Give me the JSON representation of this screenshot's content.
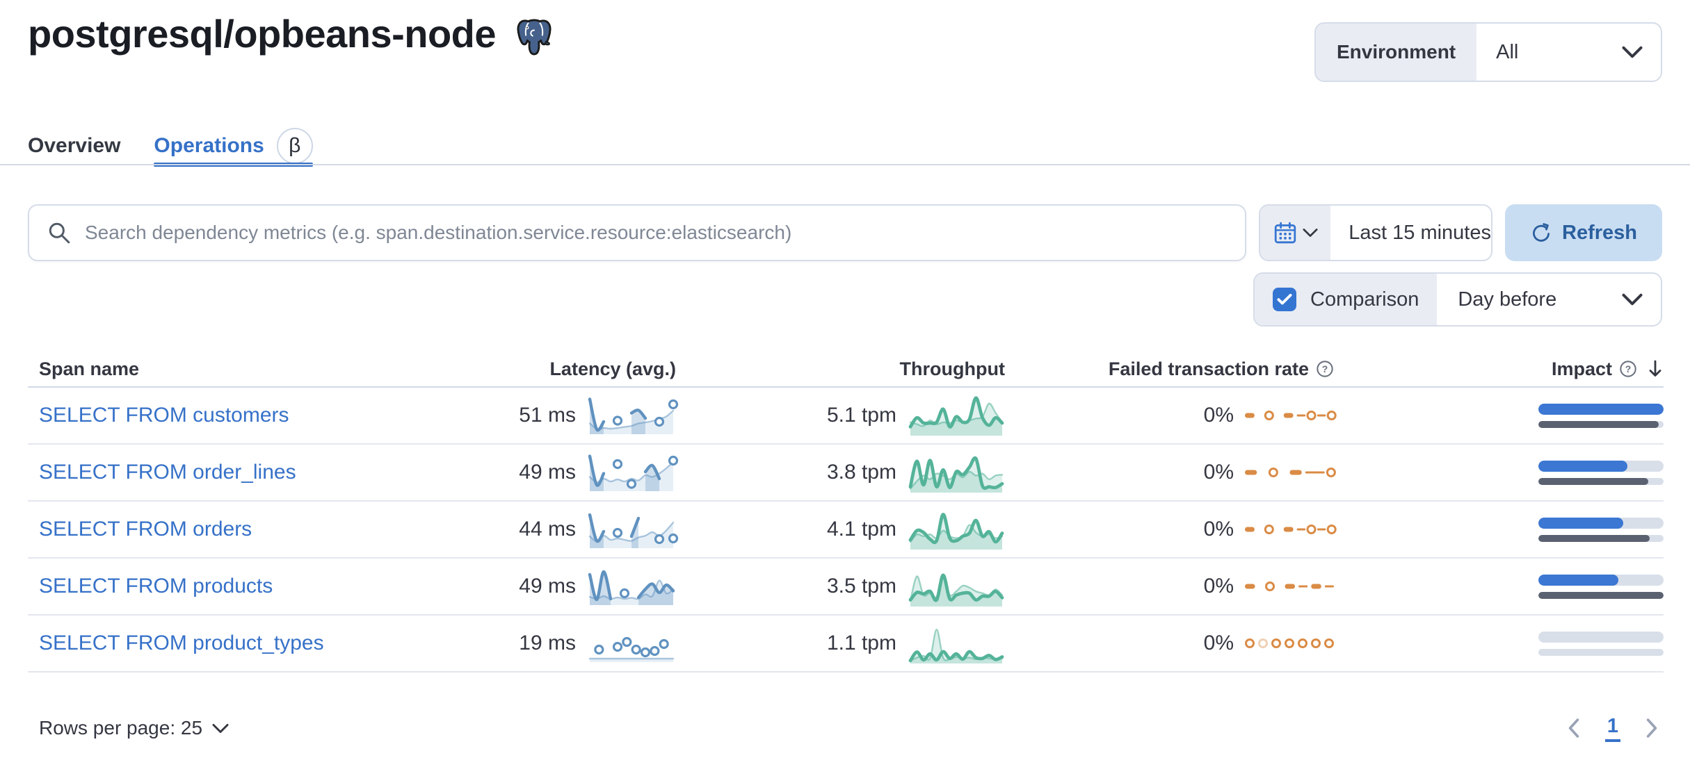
{
  "header": {
    "title": "postgresql/opbeans-node",
    "environment_label": "Environment",
    "environment_value": "All"
  },
  "tabs": [
    {
      "label": "Overview",
      "active": false
    },
    {
      "label": "Operations",
      "active": true,
      "beta": "β"
    }
  ],
  "toolbar": {
    "search_placeholder": "Search dependency metrics (e.g. span.destination.service.resource:elasticsearch)",
    "time_range": "Last 15 minutes",
    "refresh_label": "Refresh",
    "comparison_label": "Comparison",
    "comparison_checked": true,
    "comparison_value": "Day before"
  },
  "table": {
    "columns": [
      {
        "label": "Span name"
      },
      {
        "label": "Latency (avg.)"
      },
      {
        "label": "Throughput"
      },
      {
        "label": "Failed transaction rate",
        "info": true
      },
      {
        "label": "Impact",
        "info": true,
        "sorted": "desc"
      }
    ],
    "rows": [
      {
        "name": "SELECT FROM customers",
        "latency": "51 ms",
        "throughput": "5.1 tpm",
        "failed_rate": "0%",
        "impact": 1,
        "impact_prev": 0.96,
        "latency_spark": {
          "cur": [
            0.95,
            0.08,
            0.3,
            null,
            0.33,
            null,
            0.55,
            0.63,
            0.4,
            null,
            0.3,
            null,
            0.8
          ],
          "cmp": [
            0.25,
            0.1,
            0.12,
            0.1,
            0.12,
            0.15,
            0.18,
            0.25,
            0.28,
            0.32,
            0.38,
            0.45,
            0.62
          ]
        },
        "throughput_spark": {
          "cur": [
            0.18,
            0.42,
            0.28,
            0.28,
            0.3,
            0.65,
            0.18,
            0.45,
            0.3,
            0.38,
            0.95,
            0.42,
            0.22,
            0.42,
            0.28
          ],
          "cmp": [
            0.3,
            0.25,
            0.2,
            0.35,
            0.25,
            0.3,
            0.28,
            0.35,
            0.3,
            0.35,
            0.4,
            0.45,
            0.8,
            0.55,
            0.3
          ]
        },
        "failed_spark": [
          "dash",
          "gap",
          "dot",
          "gap",
          "dash",
          "thin",
          "dot",
          "thin",
          "dot"
        ]
      },
      {
        "name": "SELECT FROM order_lines",
        "latency": "49 ms",
        "throughput": "3.8 tpm",
        "failed_rate": "0%",
        "impact": 0.71,
        "impact_prev": 0.88,
        "latency_spark": {
          "cur": [
            0.95,
            0.12,
            0.45,
            null,
            0.72,
            null,
            0.15,
            null,
            0.5,
            0.68,
            0.3,
            null,
            0.82
          ],
          "cmp": [
            0.35,
            0.2,
            0.3,
            0.22,
            0.28,
            0.22,
            0.3,
            0.25,
            0.4,
            0.35,
            0.45,
            0.6,
            0.78
          ]
        },
        "throughput_spark": {
          "cur": [
            0.1,
            0.78,
            0.15,
            0.8,
            0.1,
            0.55,
            0.08,
            0.5,
            0.42,
            0.62,
            0.85,
            0.12,
            0.1,
            0.08,
            0.18
          ],
          "cmp": [
            0.05,
            0.25,
            0.4,
            0.3,
            0.45,
            0.4,
            0.3,
            0.45,
            0.35,
            0.5,
            0.4,
            0.45,
            0.3,
            0.4,
            0.42
          ]
        },
        "failed_spark": [
          "dash",
          "gap",
          "dot",
          "gap",
          "dash",
          "thinlong",
          "dot"
        ]
      },
      {
        "name": "SELECT FROM orders",
        "latency": "44 ms",
        "throughput": "4.1 tpm",
        "failed_rate": "0%",
        "impact": 0.68,
        "impact_prev": 0.89,
        "latency_spark": {
          "cur": [
            0.9,
            0.15,
            0.42,
            null,
            0.38,
            null,
            0.28,
            0.8,
            null,
            null,
            0.2,
            null,
            0.22
          ],
          "cmp": [
            0.28,
            0.14,
            0.3,
            0.18,
            0.22,
            0.18,
            0.15,
            0.25,
            0.3,
            0.4,
            0.3,
            0.45,
            0.68
          ]
        },
        "throughput_spark": {
          "cur": [
            0.2,
            0.45,
            0.4,
            0.22,
            0.18,
            0.88,
            0.25,
            0.18,
            0.3,
            0.38,
            0.72,
            0.3,
            0.42,
            0.15,
            0.38
          ],
          "cmp": [
            0.15,
            0.35,
            0.3,
            0.35,
            0.25,
            0.45,
            0.3,
            0.25,
            0.3,
            0.6,
            0.4,
            0.3,
            0.35,
            0.25,
            0.3
          ]
        },
        "failed_spark": [
          "dash",
          "gap",
          "dot",
          "gap",
          "dash",
          "thin",
          "dot",
          "thin",
          "dot"
        ]
      },
      {
        "name": "SELECT FROM products",
        "latency": "49 ms",
        "throughput": "3.5 tpm",
        "failed_rate": "0%",
        "impact": 0.64,
        "impact_prev": 1,
        "latency_spark": {
          "cur": [
            0.82,
            0.1,
            0.9,
            0.12,
            null,
            0.28,
            null,
            0.16,
            0.4,
            0.55,
            0.3,
            0.52,
            0.35
          ],
          "cmp": [
            0.18,
            0.12,
            0.2,
            0.12,
            0.16,
            0.12,
            0.15,
            0.12,
            0.25,
            0.2,
            0.65,
            0.28,
            0.4
          ]
        },
        "throughput_spark": {
          "cur": [
            0.12,
            0.32,
            0.28,
            0.35,
            0.12,
            0.78,
            0.15,
            0.25,
            0.3,
            0.3,
            0.12,
            0.22,
            0.22,
            0.35,
            0.18
          ],
          "cmp": [
            0.1,
            0.75,
            0.25,
            0.3,
            0.2,
            0.7,
            0.25,
            0.35,
            0.5,
            0.45,
            0.35,
            0.3,
            0.25,
            0.4,
            0.25
          ]
        },
        "failed_spark": [
          "dash",
          "gap",
          "dot",
          "gap",
          "dash",
          "thin",
          "dash",
          "thin"
        ]
      },
      {
        "name": "SELECT FROM product_types",
        "latency": "19 ms",
        "throughput": "1.1 tpm",
        "failed_rate": "0%",
        "impact": 0,
        "impact_prev": 0,
        "latency_spark": {
          "dots": true,
          "cur": [
            null,
            0.3,
            null,
            0.38,
            0.52,
            0.3,
            0.22,
            0.26,
            0.46,
            null
          ],
          "cmp": [
            0.04,
            0.04,
            0.04,
            0.04,
            0.04,
            0.04,
            0.04,
            0.04,
            0.04,
            0.04
          ]
        },
        "throughput_spark": {
          "cur": [
            0.02,
            0.25,
            0.04,
            0.2,
            0.04,
            0.26,
            0.08,
            0.2,
            0.06,
            0.26,
            0.1,
            0.08,
            0.16,
            0.05,
            0.12
          ],
          "cmp": [
            0.02,
            0.1,
            0.15,
            0.08,
            0.85,
            0.1,
            0.06,
            0.12,
            0.08,
            0.1,
            0.06,
            0.1,
            0.08,
            0.06,
            0.08
          ]
        },
        "failed_spark": [
          "dot",
          "dotlight",
          "dot",
          "dot",
          "dot",
          "dot",
          "dot"
        ]
      }
    ]
  },
  "footer": {
    "rows_per_page_label": "Rows per page: 25",
    "page": "1"
  },
  "colors": {
    "primary_blue": "#3671c8",
    "vis_blue": "#6092c0",
    "vis_green": "#54b399",
    "vis_orange": "#da8b45",
    "impact_blue": "#3b77d3",
    "impact_gray": "#5a6170",
    "refresh_bg": "#c9ddf2",
    "segment_bg": "#e9ecf3",
    "checkbox_blue": "#3575d2",
    "postgres_blue": "#46628c"
  }
}
